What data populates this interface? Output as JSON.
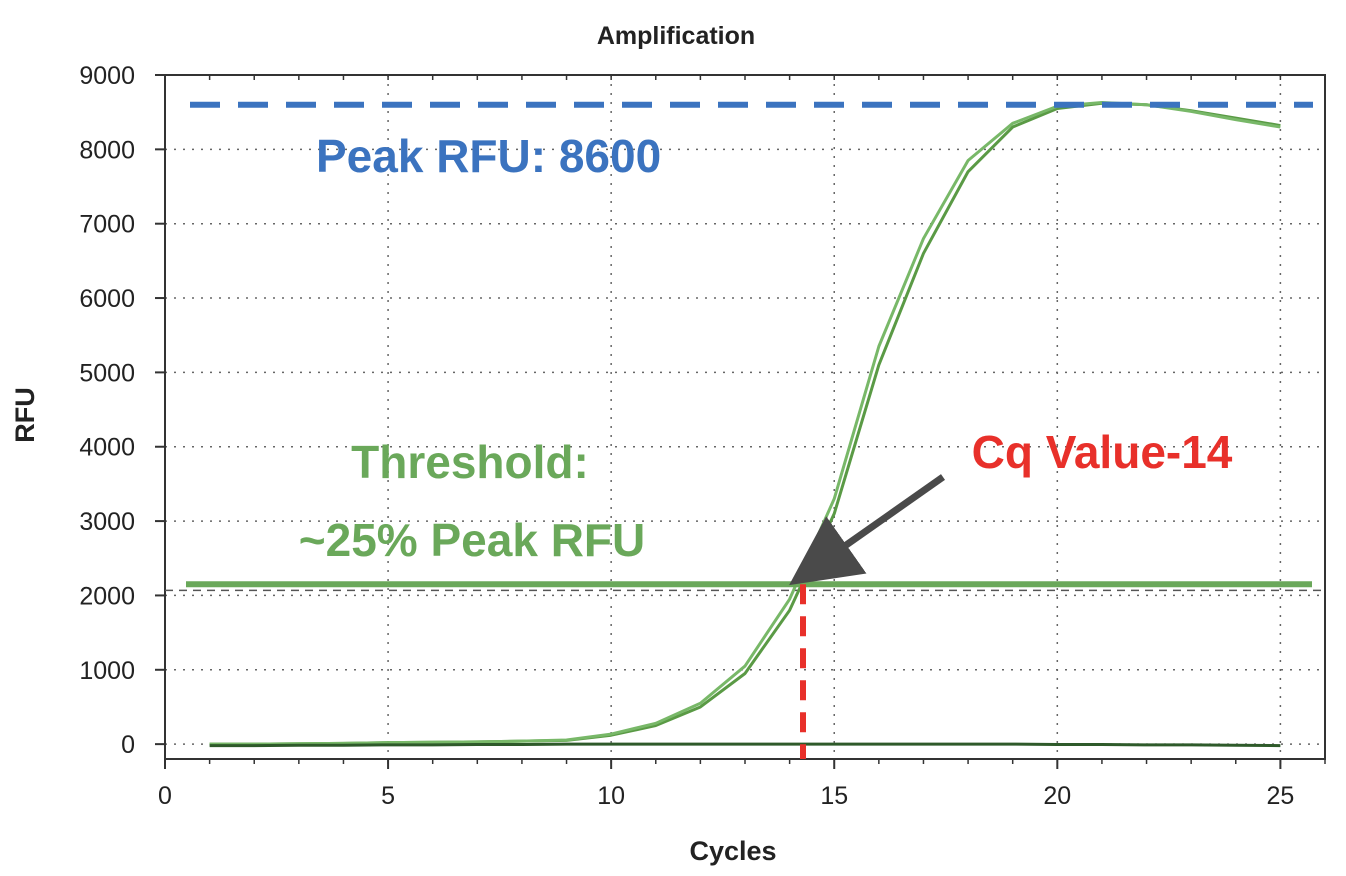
{
  "chart_data": {
    "type": "line",
    "title": "Amplification",
    "xlabel": "Cycles",
    "ylabel": "RFU",
    "xlim": [
      0,
      26
    ],
    "ylim": [
      -200,
      9000
    ],
    "x_ticks": [
      0,
      5,
      10,
      15,
      20,
      25
    ],
    "y_ticks": [
      0,
      1000,
      2000,
      3000,
      4000,
      5000,
      6000,
      7000,
      8000,
      9000
    ],
    "grid": true,
    "series": [
      {
        "color": "#5a9a45",
        "x": [
          1,
          2,
          3,
          4,
          5,
          6,
          7,
          8,
          9,
          10,
          11,
          12,
          13,
          14,
          15,
          16,
          17,
          18,
          19,
          20,
          21,
          22,
          23,
          24,
          25
        ],
        "y": [
          0,
          0,
          5,
          10,
          20,
          25,
          30,
          40,
          50,
          120,
          250,
          500,
          950,
          1800,
          3100,
          5100,
          6600,
          7700,
          8300,
          8550,
          8620,
          8600,
          8520,
          8420,
          8320
        ]
      },
      {
        "color": "#78b868",
        "x": [
          1,
          2,
          3,
          4,
          5,
          6,
          7,
          8,
          9,
          10,
          11,
          12,
          13,
          14,
          15,
          16,
          17,
          18,
          19,
          20,
          21,
          22,
          23,
          24,
          25
        ],
        "y": [
          0,
          0,
          5,
          10,
          20,
          25,
          30,
          40,
          55,
          135,
          280,
          550,
          1050,
          1950,
          3300,
          5350,
          6800,
          7850,
          8350,
          8580,
          8630,
          8600,
          8510,
          8400,
          8300
        ]
      },
      {
        "color": "#2e5a2a",
        "x": [
          1,
          2,
          3,
          4,
          5,
          6,
          7,
          8,
          9,
          10,
          11,
          12,
          13,
          14,
          15,
          16,
          17,
          18,
          19,
          20,
          21,
          22,
          23,
          24,
          25
        ],
        "y": [
          -20,
          -20,
          -15,
          -15,
          -10,
          -10,
          -5,
          -5,
          0,
          0,
          0,
          0,
          0,
          0,
          0,
          0,
          0,
          0,
          0,
          -5,
          -5,
          -10,
          -10,
          -15,
          -20
        ]
      }
    ],
    "reference_lines": {
      "peak_rfu": 8600,
      "threshold": 2150,
      "instrument_threshold": 2000,
      "cq_cycle": 14.3
    },
    "annotations": {
      "peak_label": "Peak RFU: 8600",
      "threshold_label_line1": "Threshold:",
      "threshold_label_line2": "~25% Peak RFU",
      "cq_label": "Cq Value-14"
    },
    "colors": {
      "peak": "#3b73bf",
      "threshold": "#6aa85a",
      "cq": "#e8302a",
      "arrow": "#4a4a4a"
    }
  }
}
